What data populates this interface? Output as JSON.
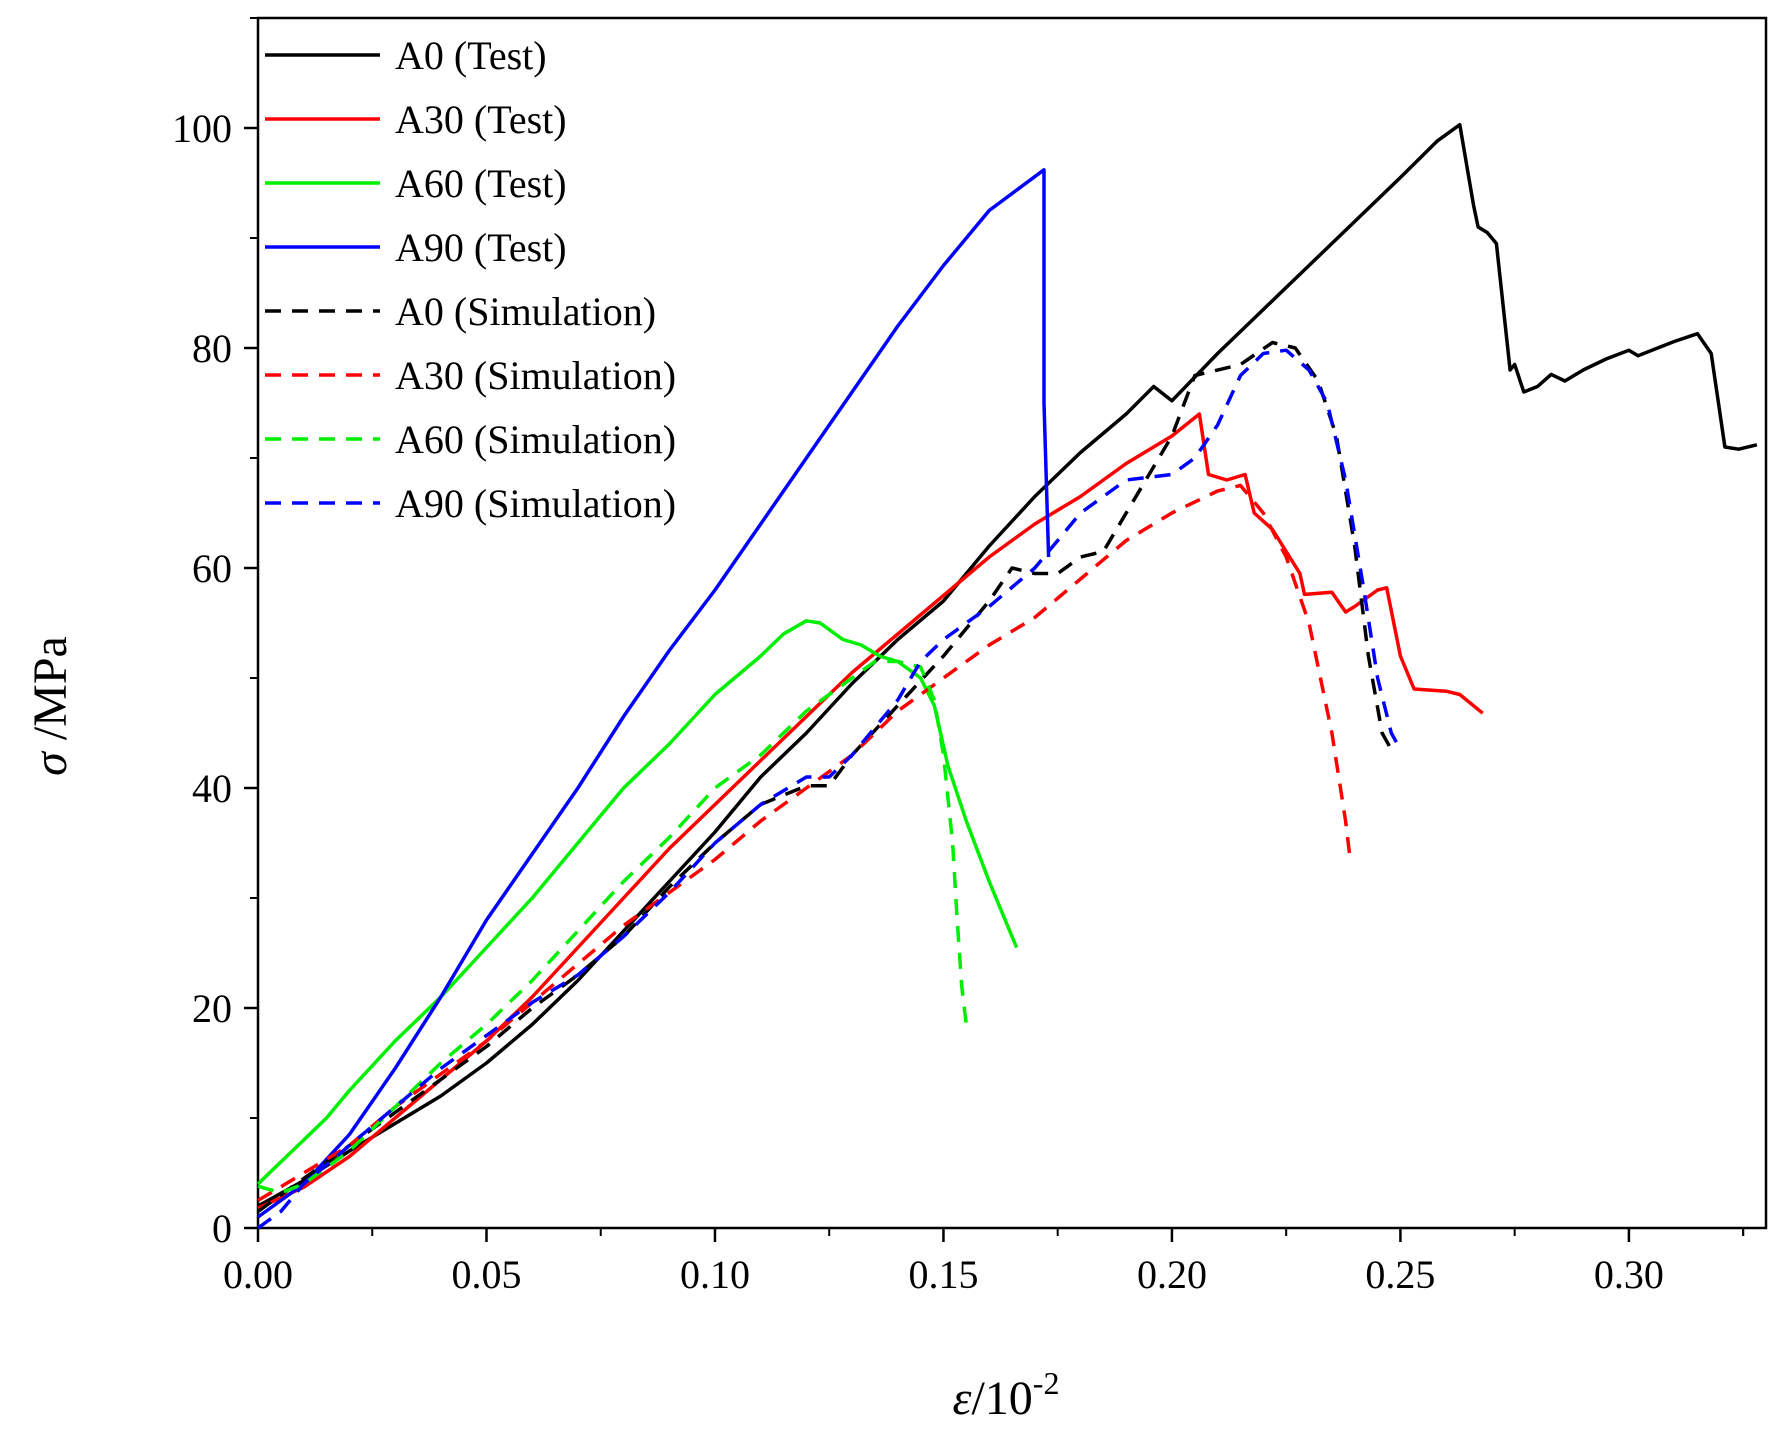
{
  "chart_data": {
    "type": "line",
    "title": "",
    "xlabel": {
      "symbol": "ε",
      "text": "/10",
      "superscript": "-2"
    },
    "ylabel": {
      "symbol": "σ",
      "text": " /MPa"
    },
    "xlim": [
      0,
      0.33
    ],
    "ylim": [
      0,
      110
    ],
    "x_ticks": [
      0.0,
      0.05,
      0.1,
      0.15,
      0.2,
      0.25,
      0.3
    ],
    "x_tick_labels": [
      "0.00",
      "0.05",
      "0.10",
      "0.15",
      "0.20",
      "0.25",
      "0.30"
    ],
    "y_ticks": [
      0,
      20,
      40,
      60,
      80,
      100
    ],
    "y_tick_labels": [
      "0",
      "20",
      "40",
      "60",
      "80",
      "100"
    ],
    "legend_position": "top-left",
    "grid": false,
    "series": [
      {
        "name": "A0 (Test)",
        "color": "#000000",
        "dash": "solid",
        "points": [
          [
            0,
            2
          ],
          [
            0.01,
            4.3
          ],
          [
            0.02,
            7
          ],
          [
            0.03,
            9.5
          ],
          [
            0.04,
            12
          ],
          [
            0.05,
            15
          ],
          [
            0.06,
            18.5
          ],
          [
            0.07,
            22.5
          ],
          [
            0.08,
            27
          ],
          [
            0.09,
            31.5
          ],
          [
            0.1,
            36
          ],
          [
            0.11,
            41
          ],
          [
            0.12,
            45
          ],
          [
            0.13,
            49.5
          ],
          [
            0.14,
            53.5
          ],
          [
            0.15,
            57
          ],
          [
            0.16,
            62
          ],
          [
            0.17,
            66.5
          ],
          [
            0.18,
            70.5
          ],
          [
            0.19,
            74
          ],
          [
            0.196,
            76.5
          ],
          [
            0.2,
            75.2
          ],
          [
            0.21,
            79.5
          ],
          [
            0.22,
            83.5
          ],
          [
            0.23,
            87.5
          ],
          [
            0.24,
            91.5
          ],
          [
            0.25,
            95.5
          ],
          [
            0.258,
            98.8
          ],
          [
            0.263,
            100.3
          ],
          [
            0.266,
            93
          ],
          [
            0.267,
            91
          ],
          [
            0.269,
            90.5
          ],
          [
            0.271,
            89.5
          ],
          [
            0.274,
            78
          ],
          [
            0.275,
            78.5
          ],
          [
            0.277,
            76
          ],
          [
            0.28,
            76.5
          ],
          [
            0.283,
            77.6
          ],
          [
            0.286,
            77
          ],
          [
            0.29,
            78
          ],
          [
            0.295,
            79
          ],
          [
            0.3,
            79.8
          ],
          [
            0.302,
            79.3
          ],
          [
            0.31,
            80.6
          ],
          [
            0.315,
            81.3
          ],
          [
            0.318,
            79.5
          ],
          [
            0.321,
            71
          ],
          [
            0.324,
            70.8
          ],
          [
            0.328,
            71.2
          ]
        ]
      },
      {
        "name": "A30 (Test)",
        "color": "#ff0000",
        "dash": "solid",
        "points": [
          [
            0,
            1.8
          ],
          [
            0.01,
            3.7
          ],
          [
            0.02,
            6.5
          ],
          [
            0.03,
            10
          ],
          [
            0.04,
            13.5
          ],
          [
            0.05,
            17
          ],
          [
            0.06,
            21
          ],
          [
            0.07,
            25.5
          ],
          [
            0.08,
            30
          ],
          [
            0.09,
            34.5
          ],
          [
            0.1,
            38.5
          ],
          [
            0.11,
            42.5
          ],
          [
            0.12,
            46.5
          ],
          [
            0.13,
            50.5
          ],
          [
            0.14,
            54
          ],
          [
            0.15,
            57.5
          ],
          [
            0.16,
            61
          ],
          [
            0.17,
            64
          ],
          [
            0.18,
            66.5
          ],
          [
            0.19,
            69.5
          ],
          [
            0.2,
            72
          ],
          [
            0.206,
            74
          ],
          [
            0.208,
            68.5
          ],
          [
            0.212,
            68
          ],
          [
            0.216,
            68.5
          ],
          [
            0.218,
            65
          ],
          [
            0.222,
            63.5
          ],
          [
            0.228,
            59.5
          ],
          [
            0.229,
            57.6
          ],
          [
            0.235,
            57.8
          ],
          [
            0.238,
            56
          ],
          [
            0.24,
            56.5
          ],
          [
            0.245,
            58
          ],
          [
            0.247,
            58.2
          ],
          [
            0.25,
            52
          ],
          [
            0.253,
            49
          ],
          [
            0.26,
            48.8
          ],
          [
            0.263,
            48.5
          ],
          [
            0.268,
            46.8
          ]
        ]
      },
      {
        "name": "A60 (Test)",
        "color": "#00ee00",
        "dash": "solid",
        "points": [
          [
            0,
            4
          ],
          [
            0.005,
            6
          ],
          [
            0.01,
            8
          ],
          [
            0.015,
            10
          ],
          [
            0.02,
            12.5
          ],
          [
            0.03,
            17
          ],
          [
            0.04,
            21
          ],
          [
            0.05,
            25.5
          ],
          [
            0.06,
            30
          ],
          [
            0.07,
            35
          ],
          [
            0.08,
            40
          ],
          [
            0.09,
            44
          ],
          [
            0.1,
            48.5
          ],
          [
            0.11,
            52
          ],
          [
            0.115,
            54
          ],
          [
            0.12,
            55.2
          ],
          [
            0.123,
            55
          ],
          [
            0.128,
            53.5
          ],
          [
            0.132,
            53
          ],
          [
            0.136,
            52
          ],
          [
            0.14,
            51.5
          ],
          [
            0.145,
            50
          ],
          [
            0.148,
            47.5
          ],
          [
            0.151,
            42
          ],
          [
            0.155,
            37
          ],
          [
            0.16,
            31.5
          ],
          [
            0.166,
            25.5
          ]
        ]
      },
      {
        "name": "A90 (Test)",
        "color": "#0000ff",
        "dash": "solid",
        "points": [
          [
            0,
            1
          ],
          [
            0.01,
            4
          ],
          [
            0.02,
            8.5
          ],
          [
            0.03,
            14.5
          ],
          [
            0.04,
            21
          ],
          [
            0.05,
            28
          ],
          [
            0.06,
            34
          ],
          [
            0.07,
            40
          ],
          [
            0.08,
            46.5
          ],
          [
            0.09,
            52.5
          ],
          [
            0.1,
            58
          ],
          [
            0.11,
            64
          ],
          [
            0.12,
            70
          ],
          [
            0.13,
            76
          ],
          [
            0.14,
            82
          ],
          [
            0.15,
            87.5
          ],
          [
            0.16,
            92.5
          ],
          [
            0.172,
            96.2
          ],
          [
            0.172,
            75
          ],
          [
            0.173,
            61
          ]
        ]
      },
      {
        "name": "A0 (Simulation)",
        "color": "#000000",
        "dash": "dashed",
        "points": [
          [
            0,
            1.5
          ],
          [
            0.01,
            4.5
          ],
          [
            0.02,
            7.5
          ],
          [
            0.03,
            10.5
          ],
          [
            0.04,
            13.5
          ],
          [
            0.05,
            16.5
          ],
          [
            0.06,
            20
          ],
          [
            0.07,
            23
          ],
          [
            0.08,
            26.5
          ],
          [
            0.09,
            31
          ],
          [
            0.1,
            35
          ],
          [
            0.11,
            38.5
          ],
          [
            0.12,
            40.2
          ],
          [
            0.125,
            40.2
          ],
          [
            0.13,
            43
          ],
          [
            0.14,
            47.5
          ],
          [
            0.15,
            52
          ],
          [
            0.16,
            57
          ],
          [
            0.165,
            60
          ],
          [
            0.17,
            59.5
          ],
          [
            0.175,
            59.5
          ],
          [
            0.18,
            61
          ],
          [
            0.185,
            61.5
          ],
          [
            0.19,
            65
          ],
          [
            0.2,
            72
          ],
          [
            0.205,
            77.5
          ],
          [
            0.215,
            78.5
          ],
          [
            0.222,
            80.5
          ],
          [
            0.227,
            80
          ],
          [
            0.232,
            77
          ],
          [
            0.236,
            72
          ],
          [
            0.24,
            62
          ],
          [
            0.243,
            52
          ],
          [
            0.246,
            45
          ],
          [
            0.248,
            43.5
          ]
        ]
      },
      {
        "name": "A30 (Simulation)",
        "color": "#ff0000",
        "dash": "dashed",
        "points": [
          [
            0,
            2.5
          ],
          [
            0.01,
            5
          ],
          [
            0.02,
            7.5
          ],
          [
            0.03,
            11
          ],
          [
            0.04,
            14
          ],
          [
            0.05,
            17
          ],
          [
            0.06,
            20.5
          ],
          [
            0.07,
            24
          ],
          [
            0.08,
            27.5
          ],
          [
            0.09,
            30.5
          ],
          [
            0.1,
            33.5
          ],
          [
            0.11,
            37
          ],
          [
            0.12,
            40
          ],
          [
            0.13,
            43
          ],
          [
            0.14,
            47
          ],
          [
            0.15,
            50
          ],
          [
            0.16,
            53
          ],
          [
            0.17,
            55.5
          ],
          [
            0.18,
            59
          ],
          [
            0.19,
            62.5
          ],
          [
            0.2,
            65
          ],
          [
            0.21,
            67
          ],
          [
            0.215,
            67.5
          ],
          [
            0.22,
            65
          ],
          [
            0.225,
            61
          ],
          [
            0.23,
            55
          ],
          [
            0.235,
            45
          ],
          [
            0.238,
            37
          ],
          [
            0.239,
            33.5
          ]
        ]
      },
      {
        "name": "A60 (Simulation)",
        "color": "#00ee00",
        "dash": "dashed",
        "points": [
          [
            0,
            3.8
          ],
          [
            0.005,
            3.2
          ],
          [
            0.01,
            4
          ],
          [
            0.02,
            7
          ],
          [
            0.03,
            11
          ],
          [
            0.04,
            15
          ],
          [
            0.05,
            18.5
          ],
          [
            0.06,
            22.5
          ],
          [
            0.07,
            27
          ],
          [
            0.08,
            31.5
          ],
          [
            0.09,
            35.5
          ],
          [
            0.1,
            40
          ],
          [
            0.11,
            43
          ],
          [
            0.12,
            47
          ],
          [
            0.13,
            50
          ],
          [
            0.135,
            51.5
          ],
          [
            0.14,
            51.5
          ],
          [
            0.145,
            51
          ],
          [
            0.148,
            48
          ],
          [
            0.15,
            43
          ],
          [
            0.152,
            35
          ],
          [
            0.153,
            28
          ],
          [
            0.154,
            22
          ],
          [
            0.155,
            18.5
          ]
        ]
      },
      {
        "name": "A90 (Simulation)",
        "color": "#0000ff",
        "dash": "dashed",
        "points": [
          [
            0,
            0
          ],
          [
            0.005,
            1.5
          ],
          [
            0.01,
            4
          ],
          [
            0.02,
            7.5
          ],
          [
            0.03,
            11
          ],
          [
            0.04,
            14.5
          ],
          [
            0.05,
            17.5
          ],
          [
            0.06,
            20.5
          ],
          [
            0.07,
            23
          ],
          [
            0.08,
            26.5
          ],
          [
            0.09,
            30.5
          ],
          [
            0.1,
            35
          ],
          [
            0.11,
            38.5
          ],
          [
            0.12,
            41
          ],
          [
            0.125,
            41
          ],
          [
            0.13,
            43
          ],
          [
            0.14,
            48
          ],
          [
            0.145,
            51.5
          ],
          [
            0.15,
            53.5
          ],
          [
            0.16,
            56.5
          ],
          [
            0.17,
            60
          ],
          [
            0.175,
            62.5
          ],
          [
            0.18,
            65
          ],
          [
            0.19,
            68
          ],
          [
            0.2,
            68.5
          ],
          [
            0.205,
            70
          ],
          [
            0.21,
            73
          ],
          [
            0.215,
            77.5
          ],
          [
            0.22,
            79.5
          ],
          [
            0.225,
            79.8
          ],
          [
            0.23,
            78
          ],
          [
            0.234,
            75
          ],
          [
            0.238,
            68
          ],
          [
            0.242,
            58
          ],
          [
            0.245,
            50
          ],
          [
            0.248,
            45
          ],
          [
            0.25,
            43.5
          ]
        ]
      }
    ]
  }
}
